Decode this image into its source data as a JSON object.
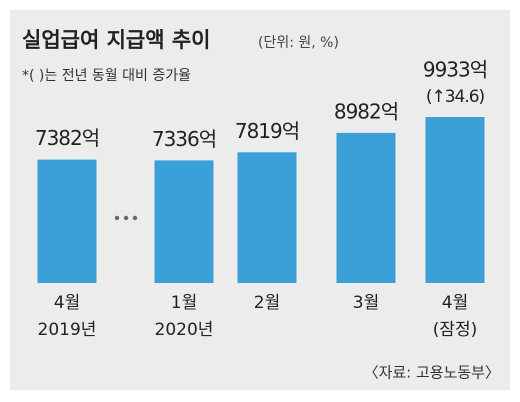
{
  "chart_data": {
    "type": "bar",
    "title": "실업급여 지급액 추이",
    "subtitle": "(단위: 원, %)",
    "note": "*( )는 전년 동월 대비 증가율",
    "categories": [
      "4월",
      "1월",
      "2월",
      "3월",
      "4월"
    ],
    "category_sublabels": [
      "2019년",
      "2020년",
      null,
      null,
      "(잠정)"
    ],
    "values": [
      7382,
      7336,
      7819,
      8982,
      9933
    ],
    "value_labels": [
      "7382억",
      "7336억",
      "7819억",
      "8982억",
      "9933억"
    ],
    "annotation": "(↑34.6)",
    "source": "〈자료: 고용노동부〉",
    "color": "#3b9fd8"
  }
}
